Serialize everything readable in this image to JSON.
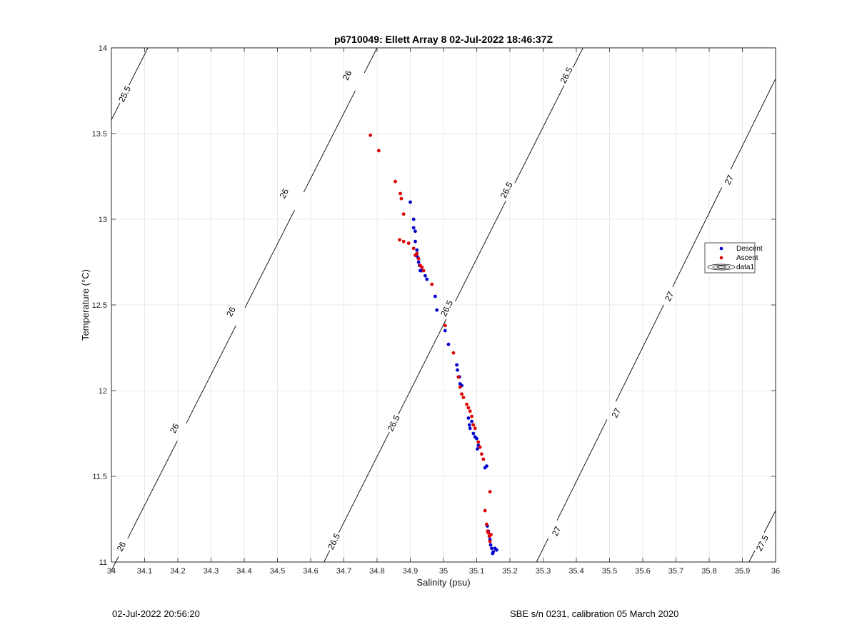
{
  "chart_data": {
    "type": "scatter",
    "title": "p6710049: Ellett Array 8 02-Jul-2022 18:46:37Z",
    "xlabel": "Salinity (psu)",
    "ylabel": "Temperature (°C)",
    "xlim": [
      34,
      36
    ],
    "ylim": [
      11,
      14
    ],
    "x_ticks": [
      "34",
      "34.1",
      "34.2",
      "34.3",
      "34.4",
      "34.5",
      "34.6",
      "34.7",
      "34.8",
      "34.9",
      "35",
      "35.1",
      "35.2",
      "35.3",
      "35.4",
      "35.5",
      "35.6",
      "35.7",
      "35.8",
      "35.9",
      "36"
    ],
    "y_ticks": [
      "11",
      "11.5",
      "12",
      "12.5",
      "13",
      "13.5",
      "14"
    ],
    "grid": true,
    "legend_position": "right",
    "legend": [
      "Descent",
      "Ascent",
      "data1"
    ],
    "colors": {
      "descent": "#0000cc",
      "ascent": "#dd0000",
      "contour": "#000000",
      "grid": "#e3e3e3"
    },
    "contours": [
      {
        "level": "25.5",
        "x0": 34.0,
        "y0": 13.58,
        "x1": 34.11,
        "y1": 14.0,
        "labels": [
          {
            "text": "25.5",
            "x": 34.04,
            "y": 13.73
          }
        ]
      },
      {
        "level": "26",
        "x0": 34.0,
        "y0": 10.95,
        "x1": 34.8,
        "y1": 14.0,
        "labels": [
          {
            "text": "26",
            "x": 34.03,
            "y": 11.09
          },
          {
            "text": "26",
            "x": 34.19,
            "y": 11.78
          },
          {
            "text": "26",
            "x": 34.36,
            "y": 12.46
          },
          {
            "text": "26",
            "x": 34.52,
            "y": 13.15
          },
          {
            "text": "26",
            "x": 34.71,
            "y": 13.84
          }
        ]
      },
      {
        "level": "26.5",
        "x0": 34.64,
        "y0": 11.0,
        "x1": 35.42,
        "y1": 14.0,
        "labels": [
          {
            "text": "26.5",
            "x": 34.67,
            "y": 11.12
          },
          {
            "text": "26.5",
            "x": 34.85,
            "y": 11.81
          },
          {
            "text": "26.5",
            "x": 35.01,
            "y": 12.48
          },
          {
            "text": "26.5",
            "x": 35.19,
            "y": 13.17
          },
          {
            "text": "26.5",
            "x": 35.37,
            "y": 13.84
          }
        ]
      },
      {
        "level": "27",
        "x0": 35.28,
        "y0": 11.0,
        "x1": 36.0,
        "y1": 13.82,
        "labels": [
          {
            "text": "27",
            "x": 35.34,
            "y": 11.18
          },
          {
            "text": "27",
            "x": 35.52,
            "y": 11.87
          },
          {
            "text": "27",
            "x": 35.68,
            "y": 12.55
          },
          {
            "text": "27",
            "x": 35.86,
            "y": 13.23
          }
        ]
      },
      {
        "level": "27.5",
        "x0": 35.92,
        "y0": 11.0,
        "x1": 36.0,
        "y1": 11.3,
        "labels": [
          {
            "text": "27.5",
            "x": 35.96,
            "y": 11.11
          }
        ]
      }
    ],
    "series": [
      {
        "name": "Descent",
        "x": [
          34.9,
          34.91,
          34.91,
          34.915,
          34.915,
          34.92,
          34.922,
          34.925,
          34.928,
          34.93,
          34.935,
          34.945,
          34.95,
          34.975,
          34.98,
          35.005,
          35.015,
          35.04,
          35.042,
          35.045,
          35.048,
          35.05,
          35.055,
          35.075,
          35.078,
          35.08,
          35.085,
          35.09,
          35.095,
          35.1,
          35.102,
          35.105,
          35.125,
          35.13,
          35.132,
          35.135,
          35.138,
          35.14,
          35.142,
          35.145,
          35.148,
          35.15,
          35.155,
          35.16
        ],
        "y": [
          13.1,
          13.0,
          12.95,
          12.93,
          12.87,
          12.82,
          12.78,
          12.75,
          12.73,
          12.7,
          12.7,
          12.67,
          12.65,
          12.55,
          12.47,
          12.35,
          12.27,
          12.15,
          12.12,
          12.08,
          12.08,
          12.04,
          12.03,
          11.84,
          11.8,
          11.78,
          11.82,
          11.75,
          11.73,
          11.72,
          11.66,
          11.68,
          11.55,
          11.56,
          11.21,
          11.18,
          11.15,
          11.13,
          11.1,
          11.08,
          11.05,
          11.06,
          11.08,
          11.07
        ]
      },
      {
        "name": "Ascent",
        "x": [
          34.78,
          34.805,
          34.855,
          34.87,
          34.873,
          34.88,
          34.868,
          34.88,
          34.895,
          34.91,
          34.915,
          34.92,
          34.925,
          34.93,
          34.935,
          34.94,
          34.965,
          35.005,
          35.03,
          35.045,
          35.05,
          35.055,
          35.06,
          35.07,
          35.075,
          35.08,
          35.085,
          35.09,
          35.095,
          35.105,
          35.11,
          35.115,
          35.12,
          35.125,
          35.13,
          35.133,
          35.135,
          35.138,
          35.14,
          35.143,
          35.14
        ],
        "y": [
          13.49,
          13.4,
          13.22,
          13.15,
          13.12,
          13.03,
          12.88,
          12.87,
          12.86,
          12.83,
          12.79,
          12.8,
          12.77,
          12.73,
          12.72,
          12.7,
          12.62,
          12.38,
          12.22,
          12.08,
          12.02,
          11.98,
          11.96,
          11.92,
          11.9,
          11.88,
          11.85,
          11.8,
          11.78,
          11.7,
          11.67,
          11.63,
          11.6,
          11.3,
          11.22,
          11.18,
          11.17,
          11.15,
          11.12,
          11.16,
          11.41
        ]
      }
    ],
    "footer_left": "02-Jul-2022 20:56:20",
    "footer_right": "SBE s/n 0231, calibration 05 March 2020"
  }
}
